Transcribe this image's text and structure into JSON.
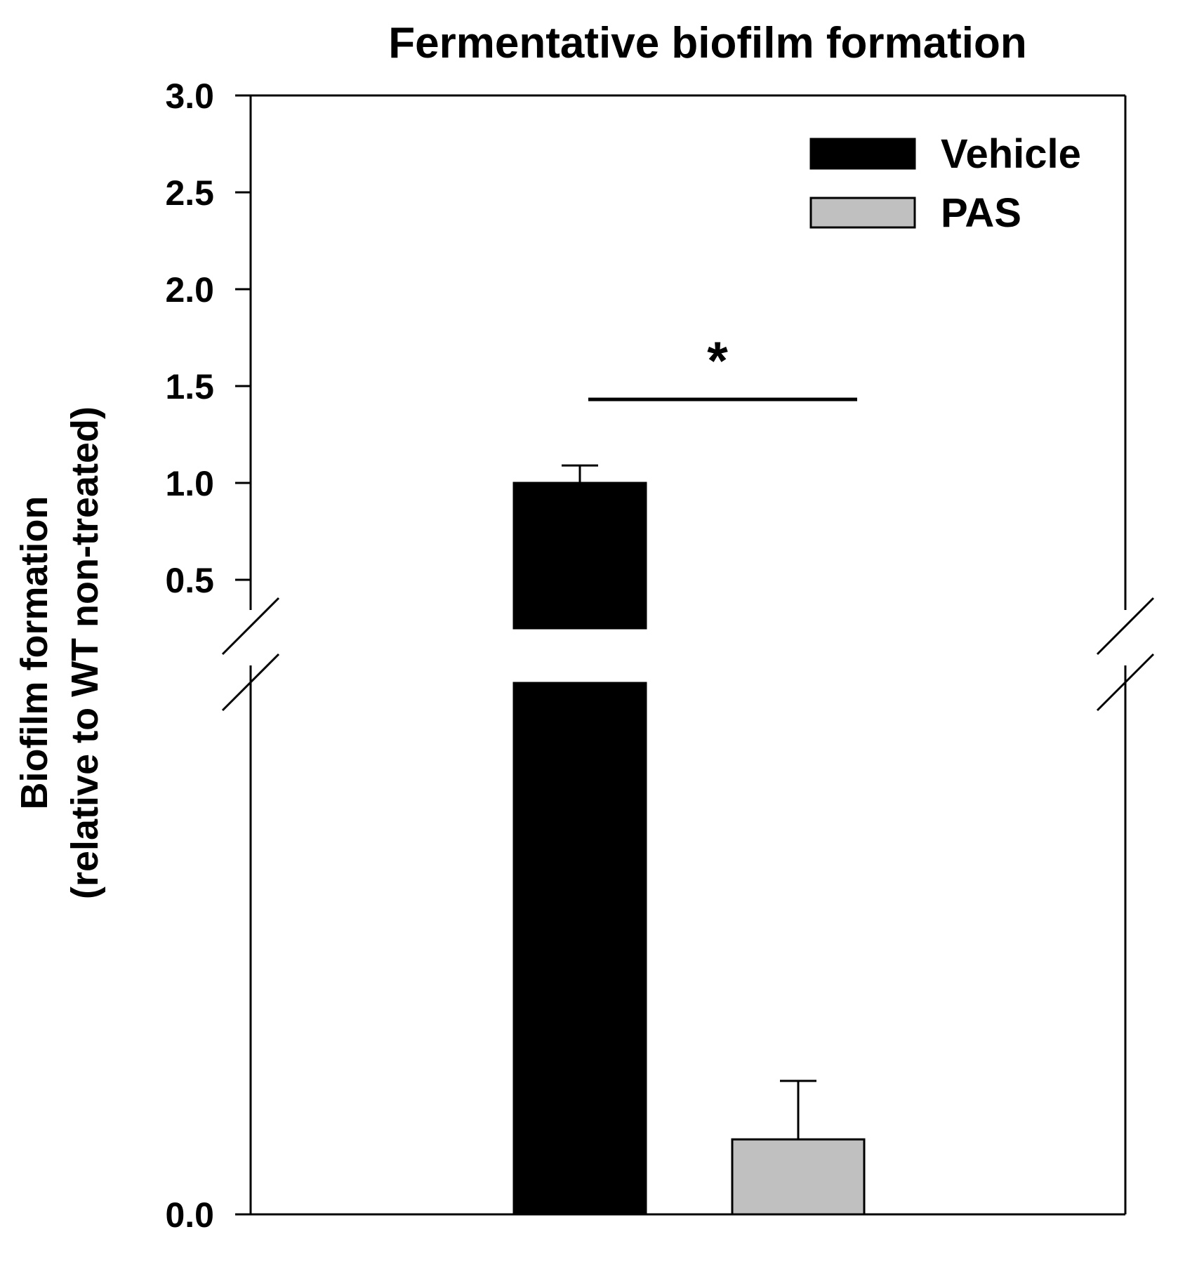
{
  "chart_data": {
    "type": "bar",
    "title": "Fermentative biofilm formation",
    "ylabel_line1": "Biofilm formation",
    "ylabel_line2": "(relative to WT non-treated)",
    "y_axis": {
      "scale": "broken",
      "lower_segment_range": [
        0,
        0.009
      ],
      "upper_segment_range": [
        0.25,
        3.0
      ],
      "tick_labels": [
        "0.0",
        "0.5",
        "1.0",
        "1.5",
        "2.0",
        "2.5",
        "3.0"
      ],
      "tick_values": [
        0.0,
        0.5,
        1.0,
        1.5,
        2.0,
        2.5,
        3.0
      ]
    },
    "grid": false,
    "legend_position": "top-right",
    "series": [
      {
        "name": "Vehicle",
        "color": "#000000",
        "value": 1.0,
        "error": 0.09
      },
      {
        "name": "PAS",
        "color": "#c0c0c0",
        "value": 0.00127,
        "error": 0.00099
      }
    ],
    "annotations": [
      {
        "text": "*",
        "type": "significance",
        "between": [
          "Vehicle",
          "PAS"
        ]
      }
    ]
  }
}
